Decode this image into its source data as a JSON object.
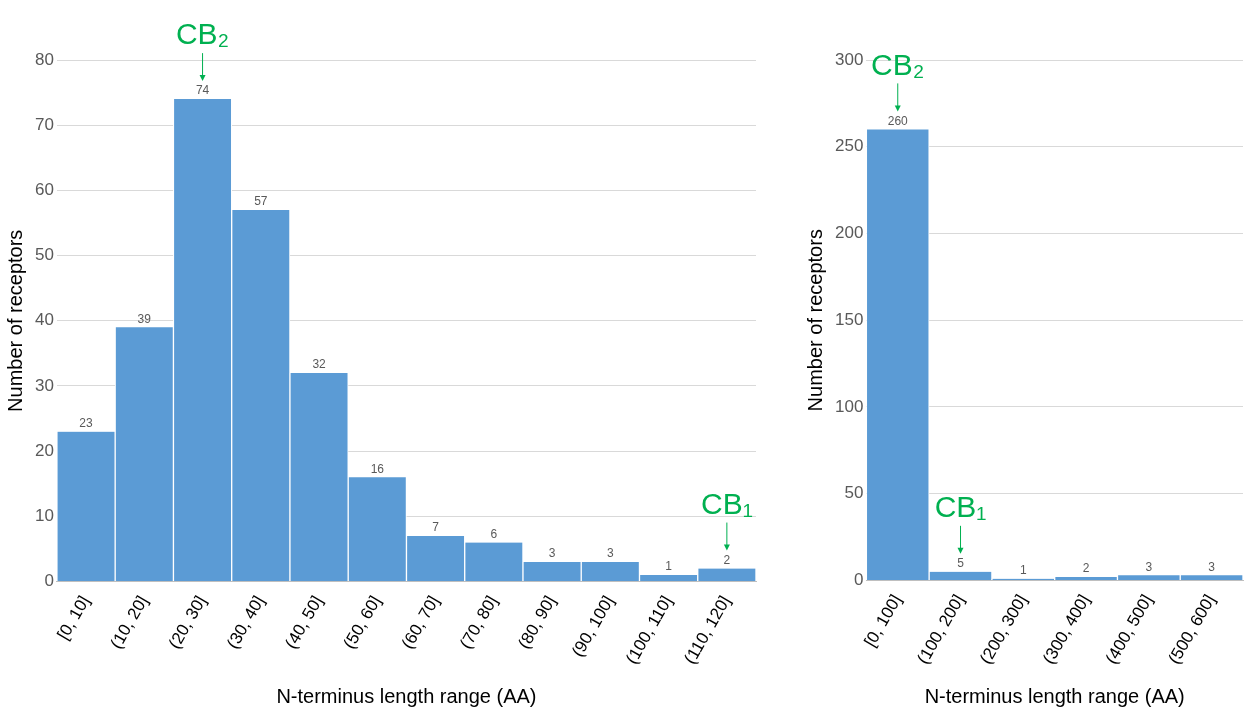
{
  "chart_data": [
    {
      "type": "bar",
      "categories": [
        "[0, 10]",
        "(10, 20]",
        "(20, 30]",
        "(30, 40]",
        "(40, 50]",
        "(50, 60]",
        "(60, 70]",
        "(70, 80]",
        "(80, 90]",
        "(90, 100]",
        "(100, 110]",
        "(110, 120]"
      ],
      "values": [
        23,
        39,
        74,
        57,
        32,
        16,
        7,
        6,
        3,
        3,
        1,
        2
      ],
      "color": "#5b9bd5",
      "xlabel": "N-terminus length range (AA)",
      "ylabel": "Number of receptors",
      "ylim": [
        0,
        80
      ],
      "yticks": [
        0,
        10,
        20,
        30,
        40,
        50,
        60,
        70,
        80
      ],
      "grid": "y",
      "data_labels": true,
      "annotations": [
        {
          "text": "CB₂",
          "x": "(20, 30]",
          "y": 74
        },
        {
          "text": "CB₁",
          "x": "(110, 120]",
          "y": 2
        }
      ]
    },
    {
      "type": "bar",
      "categories": [
        "[0, 100]",
        "(100, 200]",
        "(200, 300]",
        "(300, 400]",
        "(400, 500]",
        "(500, 600]"
      ],
      "values": [
        260,
        5,
        1,
        2,
        3,
        3
      ],
      "color": "#5b9bd5",
      "xlabel": "N-terminus length range (AA)",
      "ylabel": "Number of receptors",
      "ylim": [
        0,
        300
      ],
      "yticks": [
        0,
        50,
        100,
        150,
        200,
        250,
        300
      ],
      "grid": "y",
      "data_labels": true,
      "annotations": [
        {
          "text": "CB₂",
          "x": "[0, 100]",
          "y": 260
        },
        {
          "text": "CB₁",
          "x": "(100, 200]",
          "y": 5
        }
      ]
    }
  ]
}
